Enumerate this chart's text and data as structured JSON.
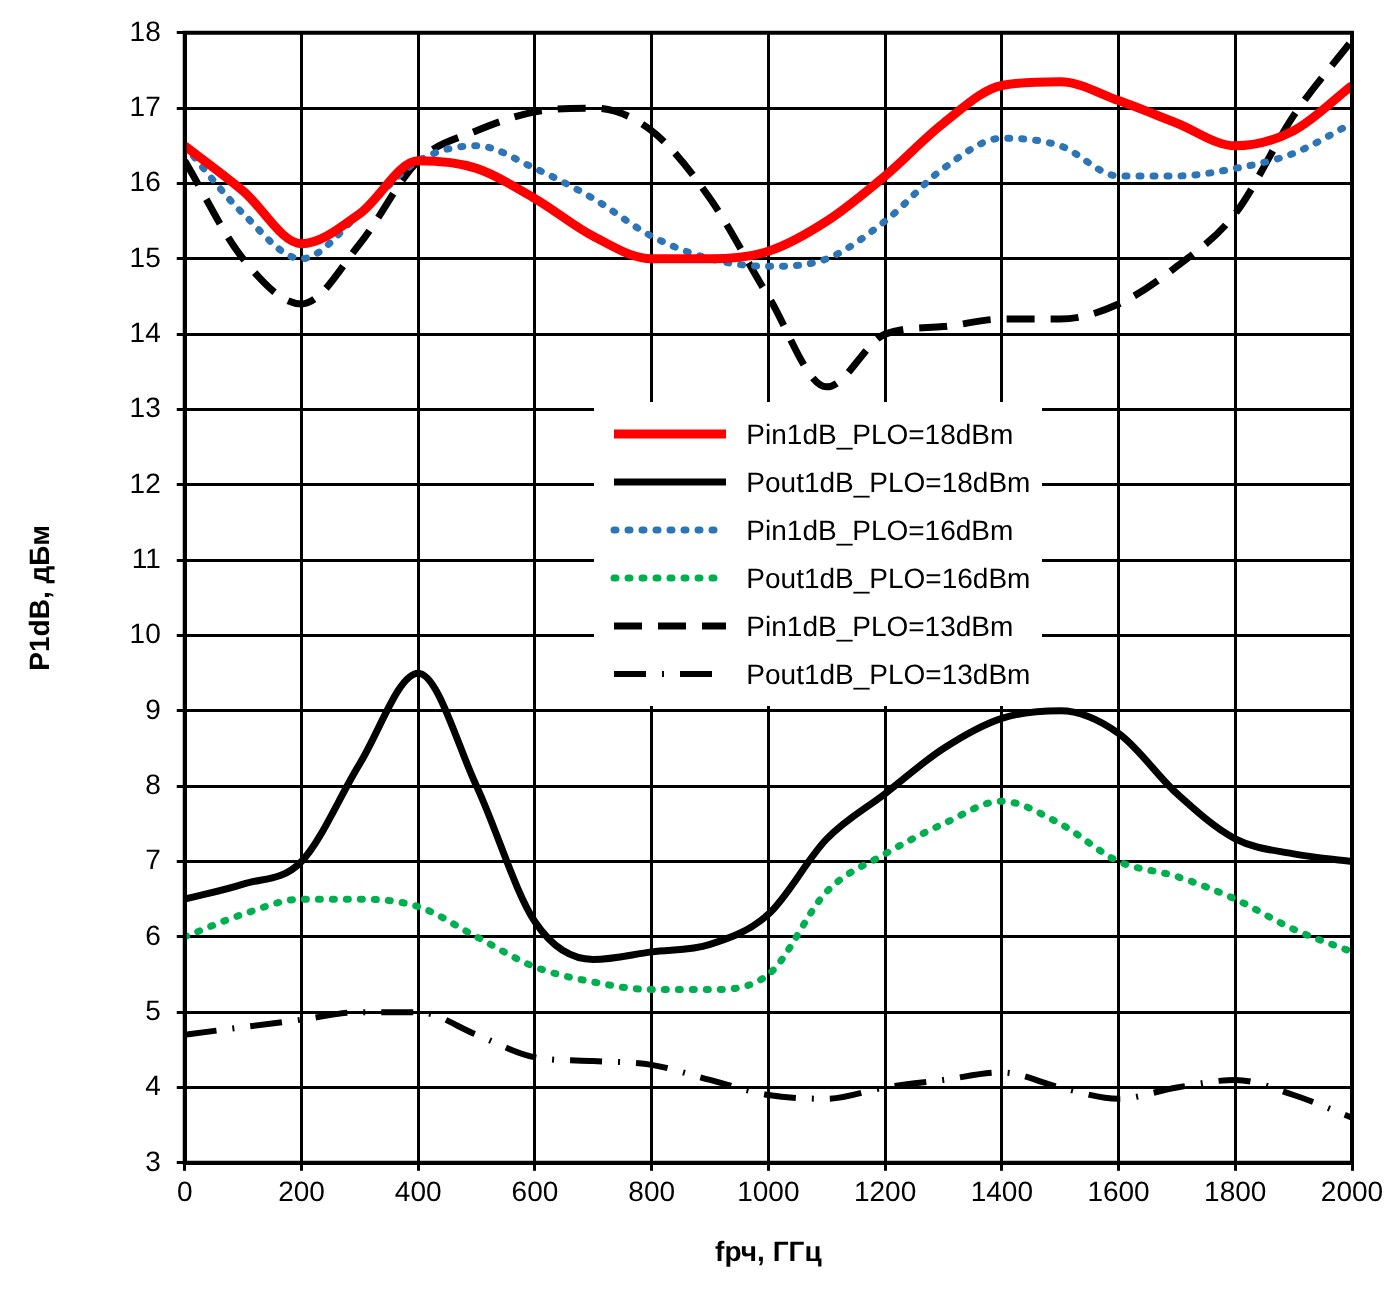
{
  "chart_data": {
    "type": "line",
    "xlabel": "fрч, ГГц",
    "ylabel": "P1dB, дБм",
    "x": [
      0,
      100,
      200,
      300,
      400,
      500,
      600,
      700,
      800,
      900,
      1000,
      1100,
      1200,
      1300,
      1400,
      1500,
      1600,
      1700,
      1800,
      1900,
      2000
    ],
    "xlim": [
      0,
      2000
    ],
    "xticks": [
      0,
      200,
      400,
      600,
      800,
      1000,
      1200,
      1400,
      1600,
      1800,
      2000
    ],
    "ylim": [
      3,
      18
    ],
    "yticks": [
      3,
      4,
      5,
      6,
      7,
      8,
      9,
      10,
      11,
      12,
      13,
      14,
      15,
      16,
      17,
      18
    ],
    "grid": true,
    "legend": "center",
    "marker": "none",
    "series": [
      {
        "name": "Pin1dB_PLO=18dBm",
        "color": "#ff0000",
        "line_style": "solid",
        "values": [
          16.5,
          15.9,
          15.2,
          15.6,
          16.3,
          16.2,
          15.8,
          15.3,
          15.0,
          15.0,
          15.1,
          15.5,
          16.1,
          16.8,
          17.3,
          17.35,
          17.1,
          16.8,
          16.5,
          16.7,
          17.3
        ]
      },
      {
        "name": "Pout1dB_PLO=18dBm",
        "color": "#000000",
        "line_style": "solid",
        "values": [
          6.5,
          6.7,
          7.0,
          8.3,
          9.5,
          8.0,
          6.2,
          5.7,
          5.8,
          5.9,
          6.3,
          7.3,
          7.9,
          8.5,
          8.9,
          9.0,
          8.7,
          7.9,
          7.3,
          7.1,
          7.0
        ]
      },
      {
        "name": "Pin1dB_PLO=16dBm",
        "color": "#2e75b6",
        "line_style": "dotted",
        "values": [
          16.5,
          15.6,
          15.0,
          15.6,
          16.3,
          16.5,
          16.2,
          15.8,
          15.3,
          15.0,
          14.9,
          15.0,
          15.5,
          16.2,
          16.6,
          16.5,
          16.1,
          16.1,
          16.2,
          16.4,
          16.8
        ]
      },
      {
        "name": "Pout1dB_PLO=16dBm",
        "color": "#00b050",
        "line_style": "dotted",
        "values": [
          6.0,
          6.3,
          6.5,
          6.5,
          6.4,
          6.0,
          5.6,
          5.4,
          5.3,
          5.3,
          5.5,
          6.6,
          7.1,
          7.5,
          7.8,
          7.5,
          7.0,
          6.8,
          6.5,
          6.1,
          5.8
        ]
      },
      {
        "name": "Pin1dB_PLO=13dBm",
        "color": "#000000",
        "line_style": "dashed",
        "values": [
          16.3,
          15.0,
          14.4,
          15.2,
          16.3,
          16.7,
          16.95,
          17.0,
          16.7,
          15.8,
          14.5,
          13.3,
          14.0,
          14.1,
          14.2,
          14.2,
          14.4,
          14.9,
          15.6,
          16.9,
          17.9
        ]
      },
      {
        "name": "Pout1dB_PLO=13dBm",
        "color": "#000000",
        "line_style": "dashdot",
        "values": [
          4.7,
          4.8,
          4.9,
          5.0,
          5.0,
          4.7,
          4.4,
          4.35,
          4.3,
          4.1,
          3.9,
          3.85,
          4.0,
          4.1,
          4.2,
          4.0,
          3.85,
          4.0,
          4.1,
          3.9,
          3.6
        ]
      }
    ]
  }
}
